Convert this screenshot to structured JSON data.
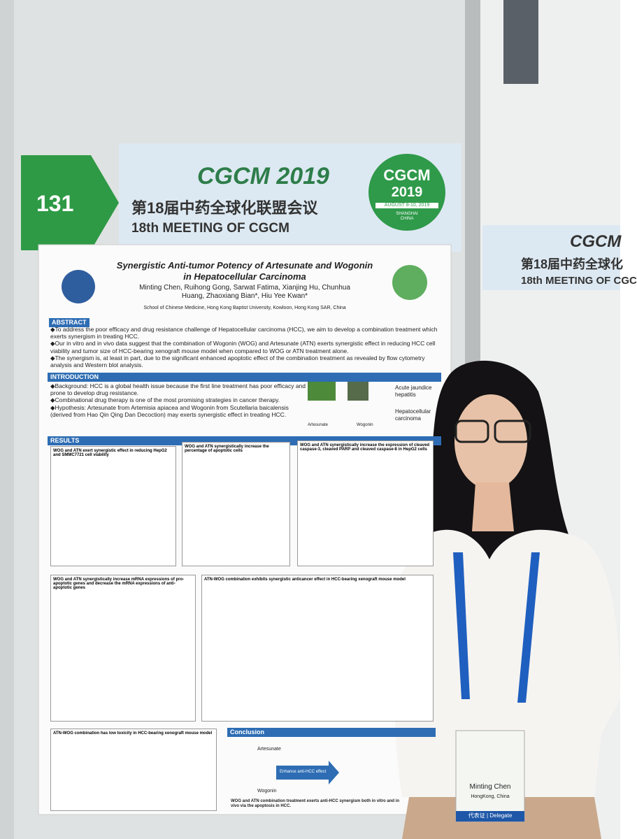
{
  "banner": {
    "number": "131",
    "brand": "CGCM 2019",
    "title_cn": "第18届中药全球化联盟会议",
    "title_en": "18th MEETING OF CGCM",
    "logo_brand": "CGCM",
    "logo_year": "2019",
    "logo_date": "AUGUST 8-10, 2019",
    "logo_city": "SHANGHAI CHINA"
  },
  "side_banner": {
    "brand": "CGCM",
    "title_cn": "第18届中药全球化",
    "title_en": "18th MEETING OF CGC"
  },
  "poster": {
    "title": "Synergistic Anti-tumor Potency of Artesunate and Wogonin in Hepatocellular Carcinoma",
    "authors": "Minting Chen, Ruihong Gong, Sarwat Fatima, Xianjing Hu, Chunhua Huang, Zhaoxiang Bian*, Hiu Yee Kwan*",
    "affiliation": "School of Chinese Medicine, Hong Kong Baptist University, Kowloon, Hong Kong SAR, China",
    "abstract": {
      "heading": "ABSTRACT",
      "items": [
        "◆To address the poor efficacy and drug resistance challenge of Hepatocellular carcinoma (HCC), we aim to develop a combination treatment which exerts synergism in treating HCC.",
        "◆Our in vitro and in vivo data suggest that the combination of Wogonin (WOG) and Artesunate (ATN) exerts synergistic effect in reducing HCC cell viability and tumor size of HCC-bearing xenograft mouse model when compared to WOG or ATN treatment alone.",
        "◆The synergism is, at least in part, due to the significant enhanced apoptotic effect of the combination treatment as revealed by flow cytometry analysis and Western blot analysis."
      ]
    },
    "introduction": {
      "heading": "INTRODUCTION",
      "items": [
        "◆Background: HCC is a global health issue because the first line treatment has poor efficacy and prone to develop drug resistance.",
        "◆Combinational drug therapy is one of the most promising strategies in cancer therapy.",
        "◆Hypothesis: Artesunate from Artemisia apiacea and Wogonin from Scutellaria baicalensis (derived from Hao Qin Qing Dan Decoction) may exerts synergistic effect in treating HCC."
      ],
      "labels": [
        "Acute jaundice hepatitis",
        "Hepatocellular carcinoma",
        "Artesunate",
        "Wogonin"
      ]
    },
    "results": {
      "heading": "RESULTS",
      "panels": [
        "WOG and ATN exert synergistic effect in reducing HepG2 and SMMC7721 cell viability",
        "WOG and ATN synergistically increase the percentage of apoptotic cells",
        "WOG and ATN synergistically increase the expression of cleaved caspase-3, cleaved PARP and cleaved caspase-8 in HepG2 cells",
        "WOG and ATN synergistically increase mRNA expressions of pro-apoptotic genes and decrease the mRNA expressions of anti-apoptotic genes",
        "ATN-WOG combination exhibits synergistic anticancer effect in HCC-bearing xenograft mouse model",
        "ATN-WOG combination has low toxicity in HCC-bearing xenograft mouse model"
      ]
    },
    "conclusion": {
      "heading": "Conclusion",
      "arrow": "Enhance anti-HCC effect",
      "drug1": "Artesunate",
      "drug2": "Wogonin",
      "text": "WOG and ATN combination treatment exerts anti-HCC synergism both in vitro and in vivo via the apoptosis in HCC."
    }
  },
  "badge": {
    "name": "Minting Chen",
    "place": "HongKong, China",
    "role": "代表证 | Delegate"
  }
}
